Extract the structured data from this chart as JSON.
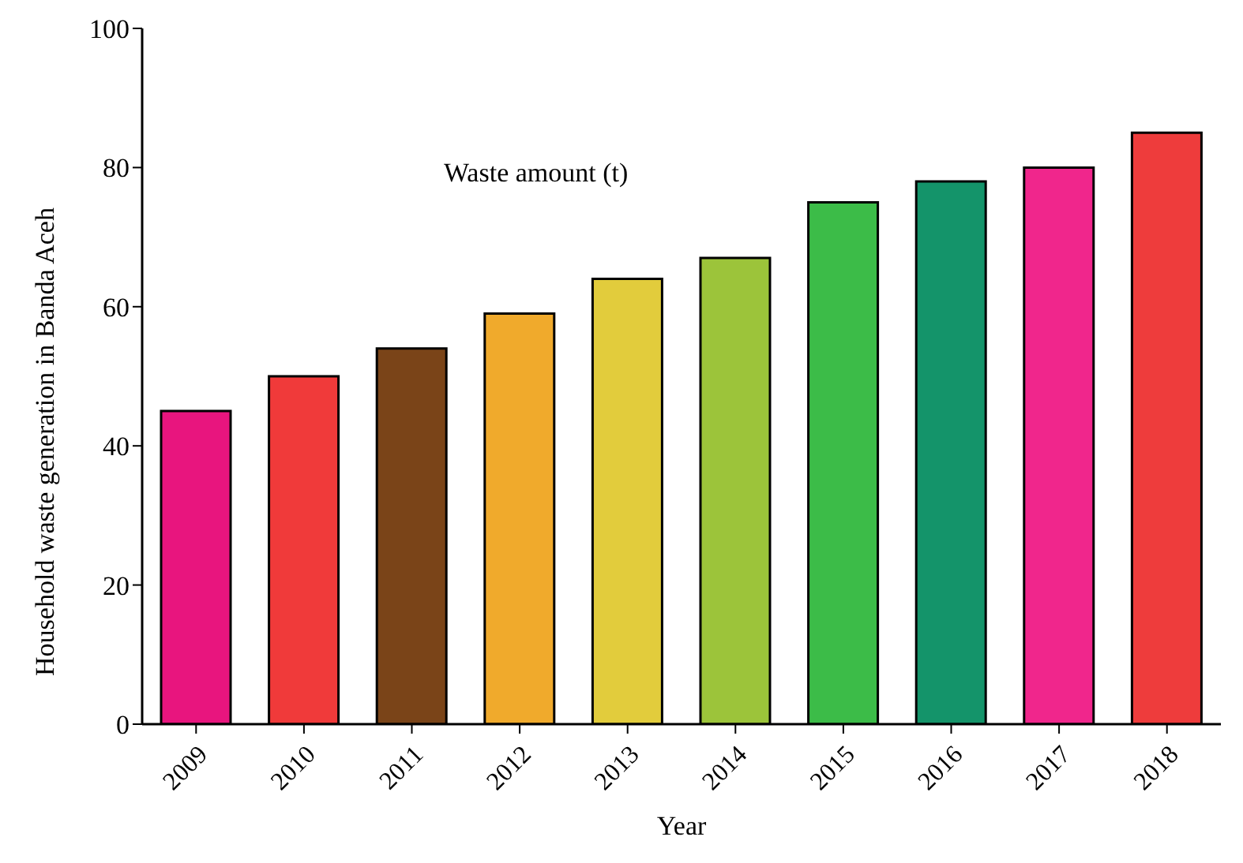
{
  "chart_data": {
    "type": "bar",
    "xlabel": "Year",
    "ylabel": "Household waste generation in Banda Aceh",
    "categories": [
      "2009",
      "2010",
      "2011",
      "2012",
      "2013",
      "2014",
      "2015",
      "2016",
      "2017",
      "2018"
    ],
    "values": [
      45,
      50,
      54,
      59,
      64,
      67,
      75,
      78,
      80,
      85
    ],
    "colors": [
      "#e8157e",
      "#f03a3a",
      "#7a4418",
      "#f0aa2c",
      "#e2cc3c",
      "#9cc43a",
      "#3cbc48",
      "#14946a",
      "#f0268c",
      "#ee3c3c"
    ],
    "ylim": [
      0,
      100
    ],
    "yticks": [
      0,
      20,
      40,
      60,
      80,
      100
    ],
    "grid": false,
    "annotations": [
      "Waste amount (t)"
    ]
  }
}
